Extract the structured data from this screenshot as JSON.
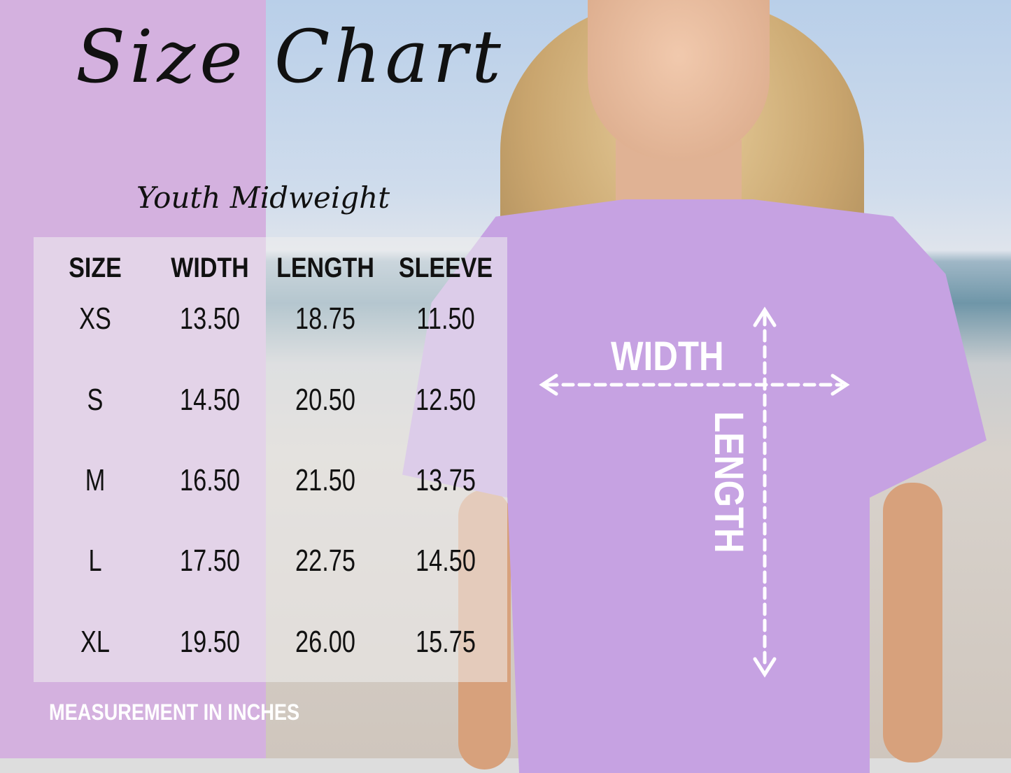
{
  "title": "Size Chart",
  "subtitle": "Youth Midweight",
  "headers": [
    "SIZE",
    "WIDTH",
    "LENGTH",
    "SLEEVE"
  ],
  "rows": [
    [
      "XS",
      "13.50",
      "18.75",
      "11.50"
    ],
    [
      "S",
      "14.50",
      "20.50",
      "12.50"
    ],
    [
      "M",
      "16.50",
      "21.50",
      "13.75"
    ],
    [
      "L",
      "17.50",
      "22.75",
      "14.50"
    ],
    [
      "XL",
      "19.50",
      "26.00",
      "15.75"
    ]
  ],
  "footer": "MEASUREMENT IN INCHES",
  "diagram": {
    "width_label": "WIDTH",
    "length_label": "LENGTH"
  },
  "colors": {
    "panel": "#d4b1df",
    "shirt": "#c6a2e2"
  }
}
